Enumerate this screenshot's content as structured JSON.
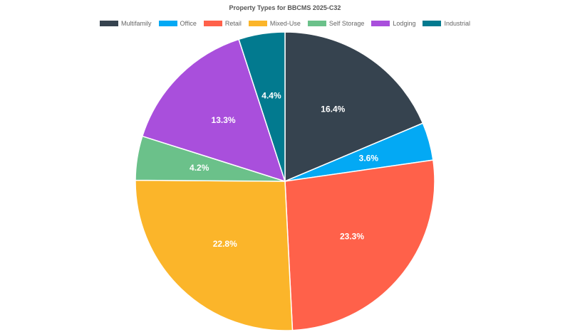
{
  "chart_data": {
    "type": "pie",
    "title": "Property Types for BBCMS 2025-C32",
    "legend_position": "top",
    "slices": [
      {
        "name": "Multifamily",
        "value": 16.4,
        "label": "16.4%",
        "color": "#36434f"
      },
      {
        "name": "Office",
        "value": 3.6,
        "label": "3.6%",
        "color": "#03a9f4"
      },
      {
        "name": "Retail",
        "value": 23.3,
        "label": "23.3%",
        "color": "#ff614a"
      },
      {
        "name": "Mixed-Use",
        "value": 22.8,
        "label": "22.8%",
        "color": "#fbb52a"
      },
      {
        "name": "Self Storage",
        "value": 4.2,
        "label": "4.2%",
        "color": "#6bc18a"
      },
      {
        "name": "Lodging",
        "value": 13.3,
        "label": "13.3%",
        "color": "#a94fdc"
      },
      {
        "name": "Industrial",
        "value": 4.4,
        "label": "4.4%",
        "color": "#027a8f"
      }
    ]
  }
}
